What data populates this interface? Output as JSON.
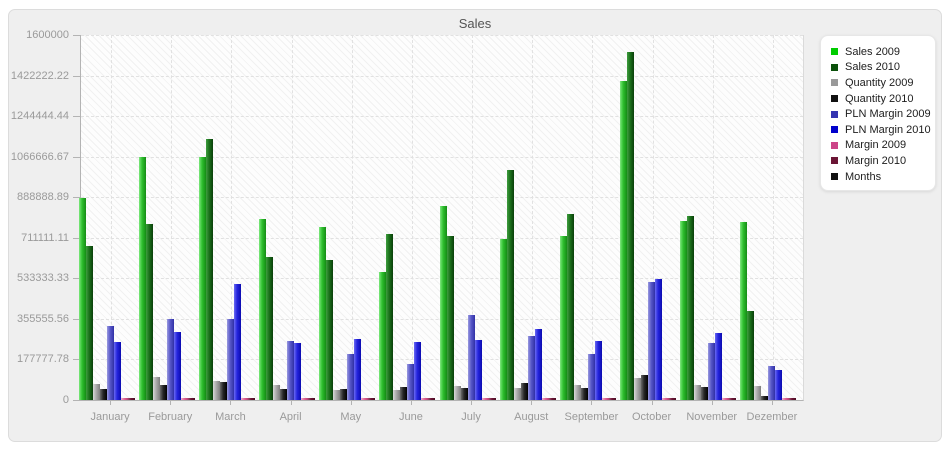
{
  "page": {
    "title": "Sales"
  },
  "colors": {
    "panel_bg": "#efefef",
    "plot_bg": "#fdfdfd",
    "axis_line": "#b3b3b3",
    "grid_line": "#e1e1e1",
    "axis_label": "#9a9a9a",
    "title_text": "#555555",
    "legend_bg": "#ffffff",
    "legend_text": "#1d1d1d"
  },
  "chart_data": {
    "type": "bar",
    "title": "Sales",
    "xlabel": "",
    "ylabel": "",
    "ylim": [
      0,
      1600000
    ],
    "grid": "dashed horizontal and vertical gridlines, hatched plot background",
    "legend_position": "top-right",
    "categories": [
      "January",
      "February",
      "March",
      "April",
      "May",
      "June",
      "July",
      "August",
      "September",
      "October",
      "November",
      "Dezember"
    ],
    "y_axis": {
      "tick_labels": [
        "1600000",
        "1422222.22",
        "1244444.44",
        "1066666.67",
        "888888.89",
        "711111.11",
        "533333.33",
        "355555.56",
        "177777.78",
        "0"
      ]
    },
    "series": [
      {
        "name": "Sales 2009",
        "swatch_color": "#00cc00",
        "bar_light": "#7ee87e",
        "bar_base": "#2ebf2e",
        "bar_dark": "#148c14",
        "values": [
          885000,
          1065000,
          1065000,
          795000,
          760000,
          562000,
          850000,
          705000,
          717000,
          1400000,
          786000,
          781000
        ]
      },
      {
        "name": "Sales 2010",
        "swatch_color": "#0a510a",
        "bar_light": "#3f9e3f",
        "bar_base": "#1b701b",
        "bar_dark": "#0a3f0a",
        "values": [
          676000,
          770000,
          1146000,
          629000,
          613000,
          729000,
          720000,
          1010000,
          816000,
          1525000,
          806000,
          390000
        ]
      },
      {
        "name": "Quantity 2009",
        "swatch_color": "#999999",
        "bar_light": "#d8d8d8",
        "bar_base": "#ababab",
        "bar_dark": "#7d7d7d",
        "values": [
          71000,
          101000,
          85000,
          64000,
          45000,
          42000,
          61000,
          52000,
          65000,
          96000,
          65000,
          62000
        ]
      },
      {
        "name": "Quantity 2010",
        "swatch_color": "#111111",
        "bar_light": "#6a6a6a",
        "bar_base": "#262626",
        "bar_dark": "#000000",
        "values": [
          50000,
          66000,
          80000,
          49000,
          50000,
          56000,
          52000,
          74000,
          52000,
          110000,
          56000,
          18000
        ]
      },
      {
        "name": "PLN Margin 2009",
        "swatch_color": "#3434b0",
        "bar_light": "#9a9ae0",
        "bar_base": "#5858c8",
        "bar_dark": "#3030a6",
        "values": [
          324000,
          356000,
          357000,
          258000,
          201000,
          160000,
          372000,
          280000,
          201000,
          516000,
          252000,
          151000
        ]
      },
      {
        "name": "PLN Margin 2010",
        "swatch_color": "#0000cc",
        "bar_light": "#6a6af2",
        "bar_base": "#2525dd",
        "bar_dark": "#0b0bb0",
        "values": [
          256000,
          296000,
          508000,
          250000,
          267000,
          256000,
          262000,
          310000,
          258000,
          529000,
          294000,
          130000
        ]
      },
      {
        "name": "Margin 2009",
        "swatch_color": "#cc4488",
        "bar_light": "#f7b6ce",
        "bar_base": "#e06a9a",
        "bar_dark": "#b84070",
        "values": [
          7000,
          7000,
          7000,
          7000,
          7000,
          7000,
          7000,
          7000,
          7000,
          7000,
          7000,
          7000
        ]
      },
      {
        "name": "Margin 2010",
        "swatch_color": "#6b1535",
        "bar_light": "#a05070",
        "bar_base": "#6b1535",
        "bar_dark": "#4a0e24",
        "values": [
          9000,
          9000,
          9000,
          9000,
          9000,
          9000,
          9000,
          9000,
          9000,
          9000,
          9000,
          9000
        ]
      },
      {
        "name": "Months",
        "swatch_color": "#111111",
        "bar_light": "#555555",
        "bar_base": "#111111",
        "bar_dark": "#000000",
        "values": [
          1,
          2,
          3,
          4,
          5,
          6,
          7,
          8,
          9,
          10,
          11,
          12
        ]
      }
    ]
  }
}
